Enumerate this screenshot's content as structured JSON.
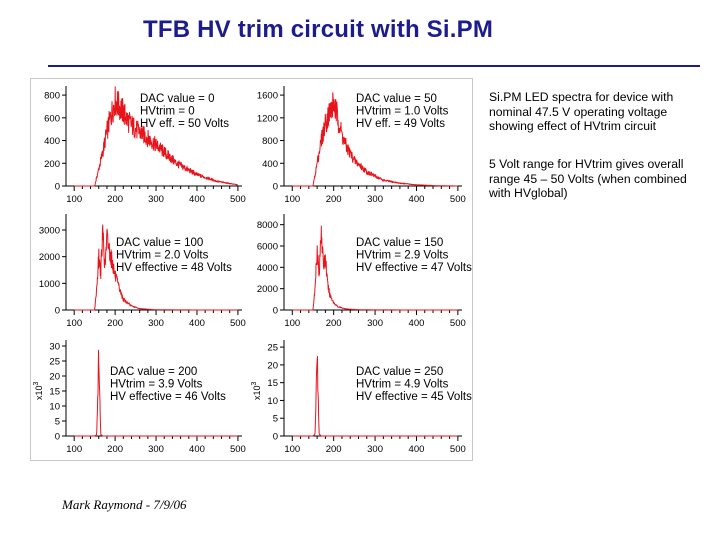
{
  "slide": {
    "title": "TFB HV trim circuit with Si.PM",
    "author": "Mark Raymond - 7/9/06",
    "description_1": "Si.PM LED spectra for device with nominal 47.5 V operating voltage showing effect of HVtrim circuit",
    "description_2": "5 Volt range for HVtrim gives overall range 45 – 50 Volts (when combined with HVglobal)"
  },
  "colors": {
    "title": "#1c1c8c",
    "trace": "#e8141c",
    "frame": "#c9c9c9"
  },
  "chart_data": [
    {
      "type": "line",
      "annotation": [
        "DAC value = 0",
        "HVtrim = 0",
        "HV eff. = 50 Volts"
      ],
      "x_ticks": [
        100,
        200,
        300,
        400,
        500
      ],
      "y_ticks": [
        0,
        200,
        400,
        600,
        800
      ],
      "xlim": [
        80,
        510
      ],
      "ylim": [
        0,
        880
      ],
      "y_multiplier_label": "",
      "x": [
        150,
        160,
        170,
        180,
        190,
        200,
        210,
        220,
        230,
        250,
        280,
        310,
        350,
        400,
        450,
        500
      ],
      "values": [
        0,
        150,
        300,
        480,
        620,
        750,
        700,
        650,
        580,
        500,
        420,
        330,
        200,
        100,
        40,
        10
      ]
    },
    {
      "type": "line",
      "annotation": [
        "DAC value = 50",
        "HVtrim = 1.0 Volts",
        "HV eff. = 49 Volts"
      ],
      "x_ticks": [
        100,
        200,
        300,
        400,
        500
      ],
      "y_ticks": [
        0,
        400,
        800,
        1200,
        1600
      ],
      "xlim": [
        80,
        510
      ],
      "ylim": [
        0,
        1760
      ],
      "y_multiplier_label": "",
      "x": [
        150,
        160,
        170,
        180,
        190,
        200,
        210,
        220,
        230,
        250,
        280,
        320,
        360,
        400,
        450,
        500
      ],
      "values": [
        0,
        400,
        800,
        1100,
        1300,
        1450,
        1200,
        900,
        700,
        450,
        250,
        100,
        50,
        20,
        5,
        0
      ]
    },
    {
      "type": "line",
      "annotation": [
        "DAC value = 100",
        "HVtrim = 2.0 Volts",
        "HV effective = 48 Volts"
      ],
      "x_ticks": [
        100,
        200,
        300,
        400,
        500
      ],
      "y_ticks": [
        0,
        1000,
        2000,
        3000
      ],
      "xlim": [
        80,
        510
      ],
      "ylim": [
        0,
        3600
      ],
      "y_multiplier_label": "",
      "x": [
        150,
        155,
        160,
        165,
        170,
        175,
        180,
        190,
        200,
        210,
        220,
        240,
        260,
        300,
        400,
        500
      ],
      "values": [
        0,
        800,
        2000,
        1400,
        3000,
        1600,
        2700,
        2000,
        1300,
        800,
        400,
        150,
        50,
        10,
        0,
        0
      ]
    },
    {
      "type": "line",
      "annotation": [
        "DAC value = 150",
        "HVtrim = 2.9 Volts",
        "HV effective = 47 Volts"
      ],
      "x_ticks": [
        100,
        200,
        300,
        400,
        500
      ],
      "y_ticks": [
        0,
        2000,
        4000,
        6000,
        8000
      ],
      "xlim": [
        80,
        510
      ],
      "ylim": [
        0,
        9000
      ],
      "y_multiplier_label": "",
      "x": [
        150,
        155,
        160,
        165,
        170,
        175,
        180,
        185,
        190,
        200,
        210,
        230,
        260,
        300,
        400,
        500
      ],
      "values": [
        0,
        2000,
        6000,
        3000,
        8000,
        4000,
        5000,
        2500,
        1500,
        700,
        300,
        100,
        30,
        10,
        0,
        0
      ]
    },
    {
      "type": "line",
      "annotation": [
        "DAC value = 200",
        "HVtrim = 3.9 Volts",
        "HV effective = 46 Volts"
      ],
      "x_ticks": [
        100,
        200,
        300,
        400,
        500
      ],
      "y_ticks": [
        0,
        5,
        10,
        15,
        20,
        25,
        30
      ],
      "xlim": [
        80,
        510
      ],
      "ylim": [
        0,
        32
      ],
      "y_multiplier_label": "x10^3",
      "x": [
        100,
        150,
        155,
        158,
        160,
        162,
        165,
        170,
        200,
        300,
        400,
        500
      ],
      "values": [
        0,
        0,
        0.5,
        15,
        29,
        15,
        0.5,
        0,
        0,
        0,
        0,
        0
      ]
    },
    {
      "type": "line",
      "annotation": [
        "DAC value = 250",
        "HVtrim = 4.9 Volts",
        "HV effective = 45 Volts"
      ],
      "x_ticks": [
        100,
        200,
        300,
        400,
        500
      ],
      "y_ticks": [
        0,
        5,
        10,
        15,
        20,
        25
      ],
      "xlim": [
        80,
        510
      ],
      "ylim": [
        0,
        27
      ],
      "y_multiplier_label": "x10^3",
      "x": [
        100,
        150,
        155,
        158,
        160,
        162,
        165,
        170,
        200,
        300,
        400,
        500
      ],
      "values": [
        0,
        0,
        0.5,
        13,
        25,
        13,
        0.5,
        0,
        0,
        0,
        0,
        0
      ]
    }
  ]
}
